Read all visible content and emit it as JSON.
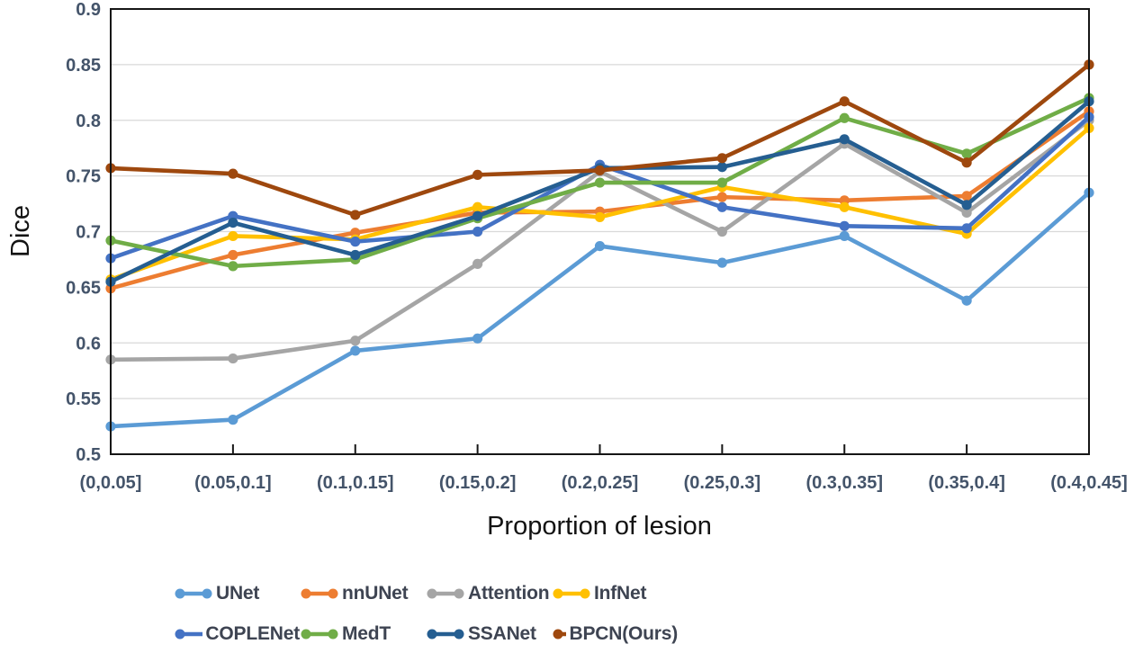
{
  "chart_data": {
    "type": "line",
    "title": "",
    "xlabel": "Proportion of lesion",
    "ylabel": "Dice",
    "ylim": [
      0.5,
      0.9
    ],
    "ytick_step": 0.05,
    "ytick_labels": [
      "0.5",
      "0.55",
      "0.6",
      "0.65",
      "0.7",
      "0.75",
      "0.8",
      "0.85",
      "0.9"
    ],
    "grid": "horizontal",
    "legend_position": "bottom",
    "legend_rows": 2,
    "categories": [
      "(0,0.05]",
      "(0.05,0.1]",
      "(0.1,0.15]",
      "(0.15,0.2]",
      "(0.2,0.25]",
      "(0.25,0.3]",
      "(0.3,0.35]",
      "(0.35,0.4]",
      "(0.4,0.45]"
    ],
    "series": [
      {
        "name": "UNet",
        "color": "#5B9BD5",
        "values": [
          0.525,
          0.531,
          0.593,
          0.604,
          0.687,
          0.672,
          0.696,
          0.638,
          0.735
        ]
      },
      {
        "name": "nnUNet",
        "color": "#ED7D31",
        "values": [
          0.649,
          0.679,
          0.699,
          0.717,
          0.718,
          0.731,
          0.728,
          0.732,
          0.808
        ]
      },
      {
        "name": "Attention",
        "color": "#A5A5A5",
        "values": [
          0.585,
          0.586,
          0.602,
          0.671,
          0.754,
          0.7,
          0.779,
          0.717,
          0.8
        ]
      },
      {
        "name": "InfNet",
        "color": "#FFC000",
        "values": [
          0.657,
          0.696,
          0.693,
          0.722,
          0.713,
          0.74,
          0.722,
          0.698,
          0.793
        ]
      },
      {
        "name": "COPLENet",
        "color": "#4472C4",
        "values": [
          0.676,
          0.714,
          0.691,
          0.7,
          0.76,
          0.722,
          0.705,
          0.703,
          0.803
        ]
      },
      {
        "name": "MedT",
        "color": "#70AD47",
        "values": [
          0.692,
          0.669,
          0.675,
          0.712,
          0.744,
          0.744,
          0.802,
          0.77,
          0.82
        ]
      },
      {
        "name": "SSANet",
        "color": "#255E91",
        "values": [
          0.655,
          0.708,
          0.679,
          0.714,
          0.757,
          0.758,
          0.783,
          0.724,
          0.817
        ]
      },
      {
        "name": "BPCN(Ours)",
        "color": "#9E480E",
        "values": [
          0.757,
          0.752,
          0.715,
          0.751,
          0.755,
          0.766,
          0.817,
          0.762,
          0.85
        ]
      }
    ]
  },
  "style_colors": {
    "axis_label": "#44546A",
    "gridline": "#D9D9D9",
    "plot_border": "#161616",
    "background": "#FFFFFF"
  }
}
